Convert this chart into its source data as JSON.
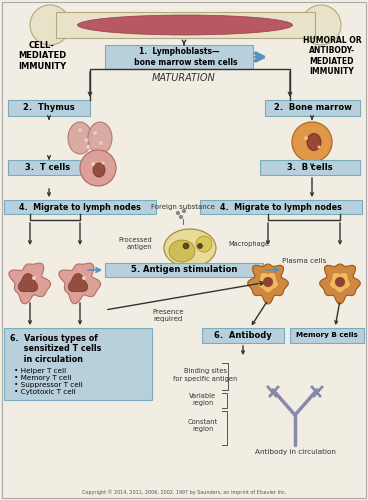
{
  "bg_color": "#f2ede3",
  "box_color": "#b8d0dc",
  "box_edge": "#7aabbc",
  "title_left": "CELL-\nMEDIATED\nIMMUNITY",
  "title_right": "HUMORAL OR\nANTIBODY-\nMEDIATED\nIMMUNITY",
  "step1_text": "1.  Lymphoblasts—\n     bone marrow stem cells",
  "maturation_text": "MATURATION",
  "step2_left": "2.  Thymus",
  "step2_right": "2.  Bone marrow",
  "step3_left": "3.  T cells",
  "step3_right": "3.  B cells",
  "step4_left": "4.  Migrate to lymph nodes",
  "step4_right": "4.  Migrate to lymph nodes",
  "step5_text": "5. Antigen stimulation",
  "step6_left_title": "6.  Various types of\n     sensitized T cells\n     in circulation",
  "step6_left_bullets": "• Helper T cell\n• Memory T cell\n• Suppressor T cell\n• Cytotoxic T cell",
  "step6_right1": "6.  Antibody",
  "step6_right2": "Memory B cells",
  "foreign_text": "Foreign substance",
  "processed_text": "Processed\nantigen",
  "macrophage_text": "Macrophage",
  "plasma_text": "Plasma cells",
  "presence_text": "Presence\nrequired",
  "binding_text": "Binding sites\nfor specific antigen",
  "variable_text": "Variable\nregion",
  "constant_text": "Constant\nregion",
  "antibody_circ_text": "Antibody in circulation",
  "copyright_text": "Copyright © 2014, 2011, 2006, 2002, 1997 by Saunders, an imprint of Elsevier Inc.",
  "bone_color": "#e8e2c8",
  "bone_marrow_color": "#b04050",
  "tcell_pink": "#d4948a",
  "bcell_orange": "#d48840",
  "antibody_color": "#8888aa"
}
